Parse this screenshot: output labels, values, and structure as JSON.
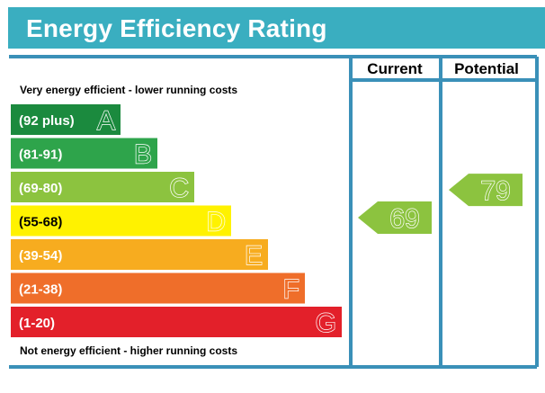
{
  "header": {
    "title": "Energy Efficiency Rating"
  },
  "chart_data": {
    "type": "table",
    "title": "Energy Efficiency Rating",
    "columns": [
      "Current",
      "Potential"
    ],
    "top_note": "Very energy efficient - lower running costs",
    "bottom_note": "Not energy efficient - higher running costs",
    "bands": [
      {
        "range": "(92 plus)",
        "letter": "A",
        "color": "#1b8a3e",
        "letter_fill": "#1b8a3e"
      },
      {
        "range": "(81-91)",
        "letter": "B",
        "color": "#2ea44b",
        "letter_fill": "#2ea44b"
      },
      {
        "range": "(69-80)",
        "letter": "C",
        "color": "#8cc33f",
        "letter_fill": "#8cc33f"
      },
      {
        "range": "(55-68)",
        "letter": "D",
        "color": "#fff200",
        "letter_fill": "#fff200"
      },
      {
        "range": "(39-54)",
        "letter": "E",
        "color": "#f7ac1f",
        "letter_fill": "#f7ac1f"
      },
      {
        "range": "(21-38)",
        "letter": "F",
        "color": "#ef6e2a",
        "letter_fill": "#ef6e2a"
      },
      {
        "range": "(1-20)",
        "letter": "G",
        "color": "#e3202a",
        "letter_fill": "#e3202a"
      }
    ],
    "values": {
      "current": 69,
      "potential": 79
    },
    "indicator_color": "#8cc33f",
    "frame_color": "#3a90b8"
  }
}
